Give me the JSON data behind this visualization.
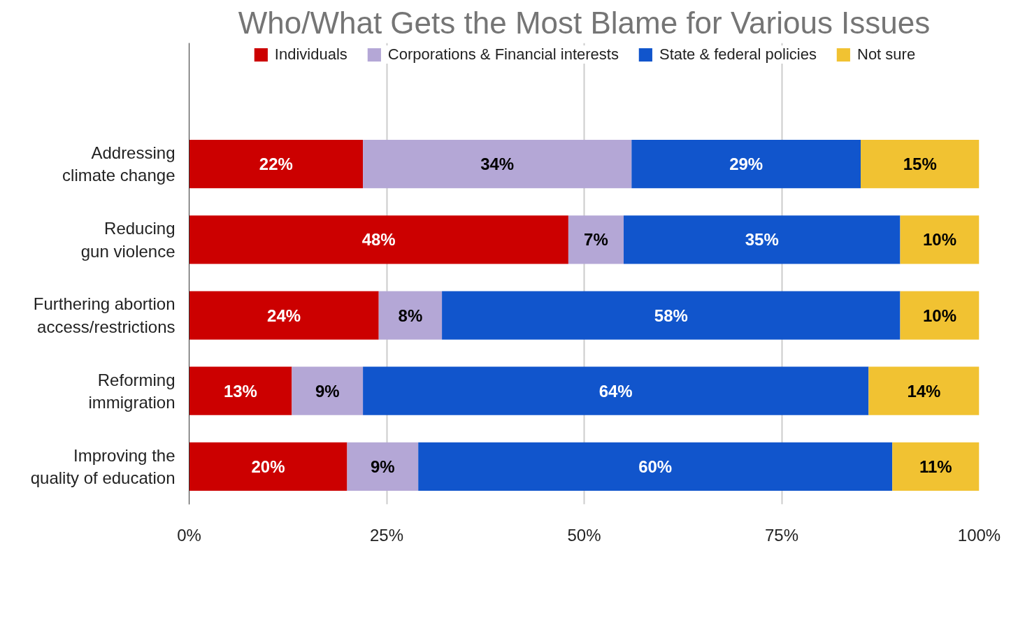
{
  "chart_data": {
    "type": "bar",
    "orientation": "horizontal",
    "stacked": true,
    "title": "Who/What Gets the Most Blame for Various Issues",
    "categories": [
      "Addressing climate change",
      "Reducing gun violence",
      "Furthering abortion access/restrictions",
      "Reforming immigration",
      "Improving the quality of education"
    ],
    "series": [
      {
        "name": "Individuals",
        "color": "#cc0000",
        "values": [
          22,
          48,
          24,
          13,
          20
        ],
        "value_labels": [
          "22%",
          "48%",
          "24%",
          "13%",
          "20%"
        ]
      },
      {
        "name": "Corporations & Financial interests",
        "color": "#b4a7d6",
        "values": [
          34,
          7,
          8,
          9,
          9
        ],
        "value_labels": [
          "34%",
          "7%",
          "8%",
          "9%",
          "9%"
        ]
      },
      {
        "name": "State & federal policies",
        "color": "#1155cc",
        "values": [
          29,
          35,
          58,
          64,
          60
        ],
        "value_labels": [
          "29%",
          "35%",
          "58%",
          "64%",
          "60%"
        ]
      },
      {
        "name": "Not sure",
        "color": "#f1c232",
        "values": [
          15,
          10,
          10,
          14,
          11
        ],
        "value_labels": [
          "15%",
          "10%",
          "10%",
          "14%",
          "11%"
        ]
      }
    ],
    "xlim": [
      0,
      100
    ],
    "xticks": [
      {
        "value": 0,
        "label": "0%"
      },
      {
        "value": 25,
        "label": "25%"
      },
      {
        "value": 50,
        "label": "50%"
      },
      {
        "value": 75,
        "label": "75%"
      },
      {
        "value": 100,
        "label": "100%"
      }
    ],
    "grid": "x",
    "legend": "top"
  }
}
